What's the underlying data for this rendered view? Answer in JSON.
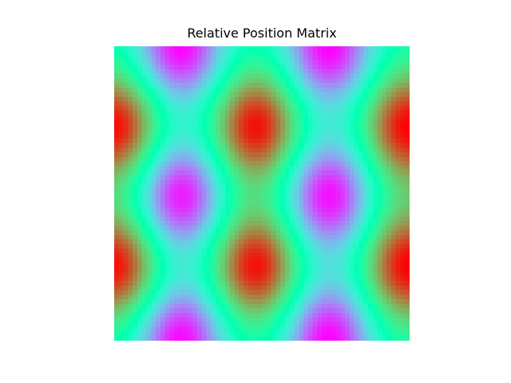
{
  "chart_data": {
    "type": "heatmap",
    "title": "Relative Position Matrix",
    "colormap": "rainbow",
    "axes_visible": false,
    "grid": false,
    "legend": "none",
    "value_range": [
      -1,
      1
    ],
    "resolution": [
      64,
      64
    ],
    "peak_cells_rows_cols_fraction": {
      "maxima": [
        [
          0.27,
          0.0
        ],
        [
          0.27,
          0.48
        ],
        [
          0.27,
          1.0
        ],
        [
          0.75,
          0.0
        ],
        [
          0.75,
          0.48
        ],
        [
          0.75,
          1.0
        ]
      ],
      "minima": [
        [
          0.0,
          0.22
        ],
        [
          0.0,
          0.73
        ],
        [
          0.51,
          0.22
        ],
        [
          0.51,
          0.73
        ],
        [
          1.0,
          0.22
        ],
        [
          1.0,
          0.73
        ]
      ]
    }
  }
}
